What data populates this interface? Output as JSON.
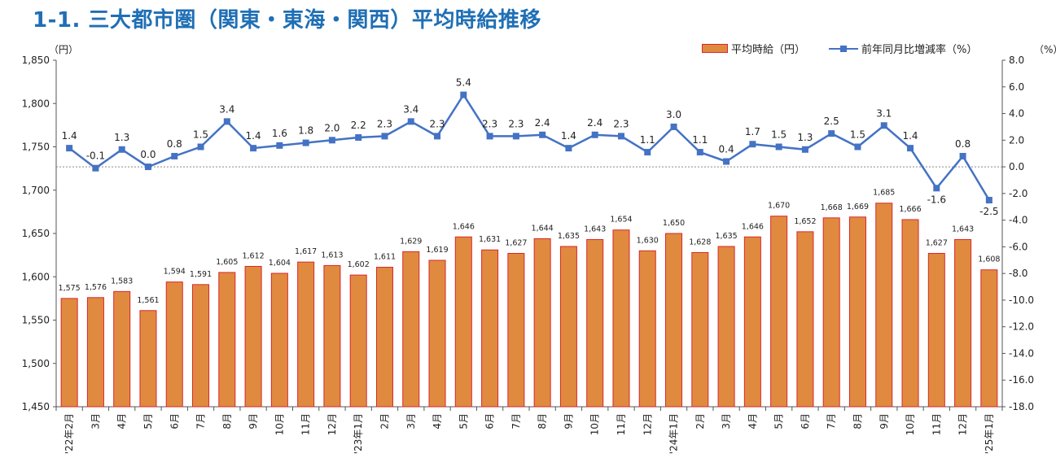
{
  "title": "1-1. 三大都市圏（関東・東海・関西）平均時給推移",
  "chart_data": {
    "type": "bar+line",
    "left_unit": "（円）",
    "right_unit": "（%）",
    "legend": [
      {
        "name": "平均時給（円）",
        "color": "#e08a40",
        "border": "#d9262b"
      },
      {
        "name": "前年同月比増減率（%）",
        "color": "#4472c4"
      }
    ],
    "categories": [
      "'22年2月",
      "3月",
      "4月",
      "5月",
      "6月",
      "7月",
      "8月",
      "9月",
      "10月",
      "11月",
      "12月",
      "'23年1月",
      "2月",
      "3月",
      "4月",
      "5月",
      "6月",
      "7月",
      "8月",
      "9月",
      "10月",
      "11月",
      "12月",
      "'24年1月",
      "2月",
      "3月",
      "4月",
      "5月",
      "6月",
      "7月",
      "8月",
      "9月",
      "10月",
      "11月",
      "12月",
      "'25年1月"
    ],
    "series": [
      {
        "name": "平均時給（円）",
        "axis": "left",
        "type": "bar",
        "values": [
          1575,
          1576,
          1583,
          1561,
          1594,
          1591,
          1605,
          1612,
          1604,
          1617,
          1613,
          1602,
          1611,
          1629,
          1619,
          1646,
          1631,
          1627,
          1644,
          1635,
          1643,
          1654,
          1630,
          1650,
          1628,
          1635,
          1646,
          1670,
          1652,
          1668,
          1669,
          1685,
          1666,
          1627,
          1643,
          1608
        ]
      },
      {
        "name": "前年同月比増減率（%）",
        "axis": "right",
        "type": "line",
        "values": [
          1.4,
          -0.1,
          1.3,
          0.0,
          0.8,
          1.5,
          3.4,
          1.4,
          1.6,
          1.8,
          2.0,
          2.2,
          2.3,
          3.4,
          2.3,
          5.4,
          2.3,
          2.3,
          2.4,
          1.4,
          2.4,
          2.3,
          1.1,
          3.0,
          1.1,
          0.4,
          1.7,
          1.5,
          1.3,
          2.5,
          1.5,
          3.1,
          1.4,
          -1.6,
          0.8,
          -2.5
        ]
      }
    ],
    "ylim_left": [
      1450,
      1850
    ],
    "yticks_left": [
      "1,450",
      "1,500",
      "1,550",
      "1,600",
      "1,650",
      "1,700",
      "1,750",
      "1,800",
      "1,850"
    ],
    "ylim_right": [
      -18.0,
      8.0
    ],
    "yticks_right": [
      "-18.0",
      "-16.0",
      "-14.0",
      "-12.0",
      "-10.0",
      "-8.0",
      "-6.0",
      "-4.0",
      "-2.0",
      "0.0",
      "2.0",
      "4.0",
      "6.0",
      "8.0"
    ],
    "zero_line_dashed": true
  }
}
